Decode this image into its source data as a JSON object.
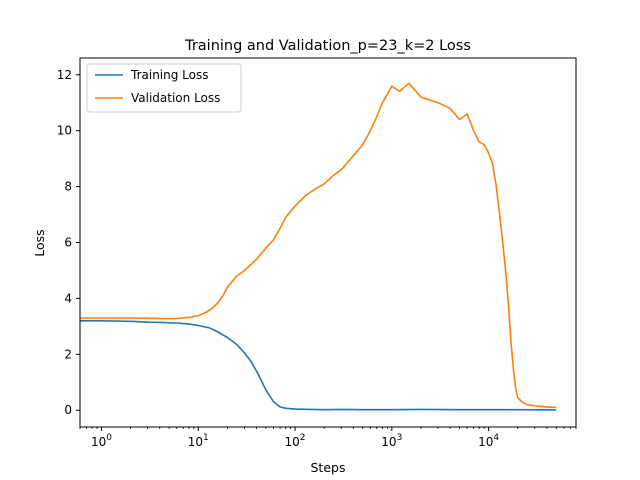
{
  "chart_data": {
    "type": "line",
    "title": "Training and Validation_p=23_k=2 Loss",
    "xlabel": "Steps",
    "ylabel": "Loss",
    "xscale": "log",
    "xlim": [
      0.6,
      80000
    ],
    "ylim": [
      -0.6,
      12.6
    ],
    "x_ticks": [
      {
        "value": 1,
        "base": "10",
        "exp": "0"
      },
      {
        "value": 10,
        "base": "10",
        "exp": "1"
      },
      {
        "value": 100,
        "base": "10",
        "exp": "2"
      },
      {
        "value": 1000,
        "base": "10",
        "exp": "3"
      },
      {
        "value": 10000,
        "base": "10",
        "exp": "4"
      }
    ],
    "y_ticks": [
      0,
      2,
      4,
      6,
      8,
      10,
      12
    ],
    "grid": false,
    "legend": "top-left",
    "series": [
      {
        "name": "Training Loss",
        "color": "#1f77b4",
        "x": [
          0.6,
          1,
          2,
          3,
          4,
          6,
          8,
          10,
          13,
          16,
          20,
          25,
          30,
          35,
          40,
          45,
          50,
          60,
          70,
          80,
          100,
          150,
          200,
          300,
          500,
          1000,
          2000,
          5000,
          10000,
          20000,
          50000
        ],
        "y": [
          3.2,
          3.2,
          3.18,
          3.15,
          3.14,
          3.12,
          3.08,
          3.03,
          2.95,
          2.8,
          2.6,
          2.35,
          2.05,
          1.75,
          1.4,
          1.05,
          0.72,
          0.3,
          0.12,
          0.07,
          0.04,
          0.03,
          0.02,
          0.03,
          0.02,
          0.02,
          0.03,
          0.02,
          0.02,
          0.02,
          0.01
        ]
      },
      {
        "name": "Validation Loss",
        "color": "#ff7f0e",
        "x": [
          0.6,
          1,
          2,
          3,
          4,
          6,
          8,
          10,
          12,
          14,
          16,
          18,
          20,
          25,
          30,
          40,
          50,
          60,
          70,
          80,
          100,
          130,
          160,
          200,
          250,
          300,
          400,
          500,
          600,
          700,
          800,
          900,
          1000,
          1200,
          1500,
          2000,
          3000,
          4000,
          5000,
          6000,
          7000,
          8000,
          9000,
          10000,
          11000,
          12000,
          13000,
          14000,
          15000,
          16000,
          17000,
          18000,
          19000,
          20000,
          22000,
          25000,
          30000,
          40000,
          50000
        ],
        "y": [
          3.3,
          3.3,
          3.3,
          3.29,
          3.28,
          3.28,
          3.32,
          3.38,
          3.5,
          3.65,
          3.85,
          4.1,
          4.4,
          4.8,
          5.0,
          5.4,
          5.8,
          6.1,
          6.5,
          6.9,
          7.3,
          7.7,
          7.9,
          8.1,
          8.4,
          8.6,
          9.1,
          9.5,
          10.0,
          10.5,
          11.0,
          11.3,
          11.6,
          11.4,
          11.7,
          11.2,
          11.0,
          10.8,
          10.4,
          10.6,
          10.0,
          9.6,
          9.5,
          9.2,
          8.8,
          8.0,
          7.0,
          6.0,
          5.0,
          3.8,
          2.5,
          1.5,
          0.8,
          0.45,
          0.3,
          0.2,
          0.15,
          0.12,
          0.1
        ]
      }
    ]
  }
}
